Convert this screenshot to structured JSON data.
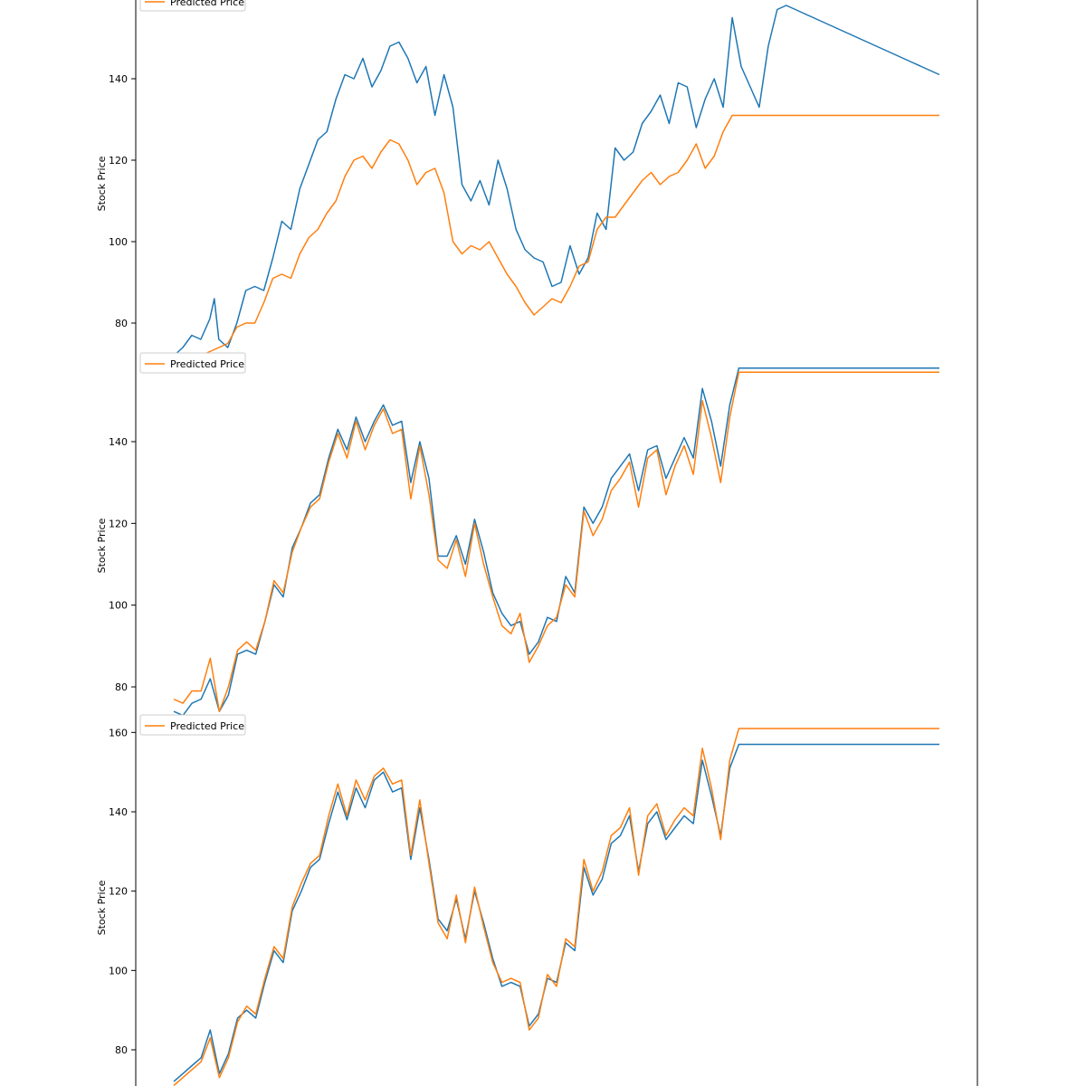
{
  "colors": {
    "actual": "#1f77b4",
    "predicted": "#ff7f0e",
    "axis": "#000000",
    "background": "#ffffff",
    "legend_border": "#cccccc"
  },
  "chart_data": [
    {
      "type": "line",
      "ylabel": "Stock Price",
      "ylim": [
        73,
        160
      ],
      "yticks": [
        {
          "value": 80,
          "label": "80"
        },
        {
          "value": 100,
          "label": "100"
        },
        {
          "value": 120,
          "label": "120"
        },
        {
          "value": 140,
          "label": "140"
        }
      ],
      "legend": {
        "placement": "top-left",
        "entries": [
          "Predicted Price"
        ]
      },
      "series": [
        {
          "role": "actual",
          "x": [
            0,
            10,
            20,
            30,
            40,
            45,
            50,
            60,
            70,
            80,
            90,
            100,
            110,
            120,
            130,
            140,
            150,
            160,
            170,
            180,
            190,
            200,
            210,
            220,
            230,
            240,
            250,
            260,
            270,
            280,
            290,
            300,
            310,
            320,
            330,
            340,
            350,
            360,
            370,
            380,
            390,
            400,
            410,
            420,
            430,
            440,
            450,
            460,
            470,
            480,
            490,
            500,
            510,
            520,
            530,
            540,
            550,
            560,
            570,
            580,
            590,
            600,
            610,
            620,
            630,
            640,
            650,
            660,
            670,
            680,
            690,
            700,
            710,
            720,
            730,
            740,
            750,
            760,
            770,
            780,
            790,
            800,
            810,
            820,
            830,
            840,
            850
          ],
          "values": [
            72,
            74,
            77,
            76,
            81,
            86,
            76,
            74,
            80,
            88,
            89,
            88,
            96,
            105,
            103,
            113,
            119,
            125,
            127,
            135,
            141,
            140,
            145,
            138,
            142,
            148,
            149,
            145,
            139,
            143,
            131,
            141,
            133,
            114,
            110,
            115,
            109,
            120,
            113,
            103,
            98,
            96,
            95,
            89,
            90,
            99,
            92,
            96,
            107,
            103,
            123,
            120,
            122,
            129,
            132,
            136,
            129,
            139,
            138,
            128,
            135,
            140,
            133,
            155,
            143,
            138,
            133,
            148,
            157,
            158,
            157,
            156,
            155,
            154,
            153,
            152,
            151,
            150,
            149,
            148,
            147,
            146,
            145,
            144,
            143,
            142,
            141
          ]
        },
        {
          "role": "predicted",
          "name": "Predicted Price",
          "x": [
            0,
            10,
            20,
            30,
            40,
            50,
            60,
            70,
            80,
            90,
            100,
            110,
            120,
            130,
            140,
            150,
            160,
            170,
            180,
            190,
            200,
            210,
            220,
            230,
            240,
            250,
            260,
            270,
            280,
            290,
            300,
            310,
            320,
            330,
            340,
            350,
            360,
            370,
            380,
            390,
            400,
            410,
            420,
            430,
            440,
            450,
            460,
            470,
            480,
            490,
            500,
            510,
            520,
            530,
            540,
            550,
            560,
            570,
            580,
            590,
            600,
            610,
            620,
            630,
            640,
            650,
            660,
            670,
            680,
            690,
            700,
            710,
            720,
            730,
            740,
            750,
            760,
            770,
            780,
            790,
            800,
            810,
            820,
            830,
            840,
            850
          ],
          "values": [
            70,
            71,
            72,
            72,
            73,
            74,
            75,
            79,
            80,
            80,
            85,
            91,
            92,
            91,
            97,
            101,
            103,
            107,
            110,
            116,
            120,
            121,
            118,
            122,
            125,
            124,
            120,
            114,
            117,
            118,
            112,
            100,
            97,
            99,
            98,
            100,
            96,
            92,
            89,
            85,
            82,
            84,
            86,
            85,
            89,
            94,
            95,
            103,
            106,
            106,
            109,
            112,
            115,
            117,
            114,
            116,
            117,
            120,
            124,
            118,
            121,
            127,
            131,
            131,
            131,
            131,
            131,
            131,
            131,
            131,
            131,
            131,
            131,
            131,
            131,
            131,
            131,
            131,
            131,
            131,
            131,
            131,
            131,
            131,
            131,
            131
          ]
        }
      ]
    },
    {
      "type": "line",
      "ylabel": "Stock Price",
      "ylim": [
        73,
        160
      ],
      "yticks": [
        {
          "value": 80,
          "label": "80"
        },
        {
          "value": 100,
          "label": "100"
        },
        {
          "value": 120,
          "label": "120"
        },
        {
          "value": 140,
          "label": "140"
        }
      ],
      "legend": {
        "placement": "top-left",
        "entries": [
          "Predicted Price"
        ]
      },
      "series": [
        {
          "role": "actual",
          "x": [
            0,
            10,
            20,
            30,
            40,
            50,
            60,
            70,
            80,
            90,
            100,
            110,
            120,
            130,
            140,
            150,
            160,
            170,
            180,
            190,
            200,
            210,
            220,
            230,
            240,
            250,
            260,
            270,
            280,
            290,
            300,
            310,
            320,
            330,
            340,
            350,
            360,
            370,
            380,
            390,
            400,
            410,
            420,
            430,
            440,
            450,
            460,
            470,
            480,
            490,
            500,
            510,
            520,
            530,
            540,
            550,
            560,
            570,
            580,
            590,
            600,
            610,
            620,
            630,
            640,
            650,
            660,
            670,
            680,
            690,
            700,
            710,
            720,
            730,
            740,
            750,
            760,
            770,
            780,
            790,
            800,
            810,
            820,
            830,
            840
          ],
          "values": [
            74,
            73,
            76,
            77,
            82,
            74,
            78,
            88,
            89,
            88,
            96,
            105,
            102,
            114,
            119,
            125,
            127,
            136,
            143,
            138,
            146,
            140,
            145,
            149,
            144,
            145,
            130,
            140,
            131,
            112,
            112,
            117,
            110,
            121,
            113,
            103,
            98,
            95,
            96,
            88,
            91,
            97,
            96,
            107,
            103,
            124,
            120,
            124,
            131,
            134,
            137,
            128,
            138,
            139,
            131,
            136,
            141,
            136,
            153,
            145,
            134,
            149,
            158,
            158,
            158,
            158,
            158,
            158,
            158,
            158,
            158,
            158,
            158,
            158,
            158,
            158,
            158,
            158,
            158,
            158,
            158,
            158,
            158,
            158,
            158
          ]
        },
        {
          "role": "predicted",
          "name": "Predicted Price",
          "x": [
            0,
            10,
            20,
            30,
            40,
            50,
            60,
            70,
            80,
            90,
            100,
            110,
            120,
            130,
            140,
            150,
            160,
            170,
            180,
            190,
            200,
            210,
            220,
            230,
            240,
            250,
            260,
            270,
            280,
            290,
            300,
            310,
            320,
            330,
            340,
            350,
            360,
            370,
            380,
            390,
            400,
            410,
            420,
            430,
            440,
            450,
            460,
            470,
            480,
            490,
            500,
            510,
            520,
            530,
            540,
            550,
            560,
            570,
            580,
            590,
            600,
            610,
            620,
            630,
            640,
            650,
            660,
            670,
            680,
            690,
            700,
            710,
            720,
            730,
            740,
            750,
            760,
            770,
            780,
            790,
            800,
            810,
            820,
            830,
            840
          ],
          "values": [
            77,
            76,
            79,
            79,
            87,
            74,
            80,
            89,
            91,
            89,
            96,
            106,
            103,
            113,
            119,
            124,
            126,
            135,
            142,
            136,
            145,
            138,
            144,
            148,
            142,
            143,
            126,
            139,
            127,
            111,
            109,
            116,
            107,
            120,
            110,
            102,
            95,
            93,
            98,
            86,
            90,
            95,
            97,
            105,
            102,
            123,
            117,
            121,
            128,
            131,
            135,
            124,
            136,
            138,
            127,
            134,
            139,
            132,
            150,
            141,
            130,
            146,
            157,
            157,
            157,
            157,
            157,
            157,
            157,
            157,
            157,
            157,
            157,
            157,
            157,
            157,
            157,
            157,
            157,
            157,
            157,
            157,
            157,
            157,
            157
          ]
        }
      ]
    },
    {
      "type": "line",
      "ylabel": "Stock Price",
      "ylim": [
        73,
        161
      ],
      "yticks": [
        {
          "value": 80,
          "label": "80"
        },
        {
          "value": 100,
          "label": "100"
        },
        {
          "value": 120,
          "label": "120"
        },
        {
          "value": 140,
          "label": "140"
        },
        {
          "value": 160,
          "label": "160"
        }
      ],
      "legend": {
        "placement": "top-left",
        "entries": [
          "Predicted Price"
        ]
      },
      "series": [
        {
          "role": "actual",
          "x": [
            0,
            10,
            20,
            30,
            40,
            50,
            60,
            70,
            80,
            90,
            100,
            110,
            120,
            130,
            140,
            150,
            160,
            170,
            180,
            190,
            200,
            210,
            220,
            230,
            240,
            250,
            260,
            270,
            280,
            290,
            300,
            310,
            320,
            330,
            340,
            350,
            360,
            370,
            380,
            390,
            400,
            410,
            420,
            430,
            440,
            450,
            460,
            470,
            480,
            490,
            500,
            510,
            520,
            530,
            540,
            550,
            560,
            570,
            580,
            590,
            600,
            610,
            620,
            630,
            640,
            650,
            660,
            670,
            680,
            690,
            700,
            710,
            720,
            730,
            740,
            750,
            760,
            770,
            780,
            790,
            800,
            810,
            820,
            830,
            840
          ],
          "values": [
            72,
            74,
            76,
            78,
            85,
            74,
            79,
            88,
            90,
            88,
            97,
            105,
            102,
            115,
            120,
            126,
            128,
            137,
            145,
            138,
            146,
            141,
            148,
            150,
            145,
            146,
            128,
            141,
            128,
            113,
            110,
            118,
            108,
            120,
            112,
            103,
            96,
            97,
            96,
            86,
            89,
            98,
            97,
            107,
            105,
            126,
            119,
            123,
            132,
            134,
            139,
            125,
            137,
            140,
            133,
            136,
            139,
            137,
            153,
            144,
            134,
            151,
            157,
            157,
            157,
            157,
            157,
            157,
            157,
            157,
            157,
            157,
            157,
            157,
            157,
            157,
            157,
            157,
            157,
            157,
            157,
            157,
            157,
            157,
            157
          ]
        },
        {
          "role": "predicted",
          "name": "Predicted Price",
          "x": [
            0,
            10,
            20,
            30,
            40,
            50,
            60,
            70,
            80,
            90,
            100,
            110,
            120,
            130,
            140,
            150,
            160,
            170,
            180,
            190,
            200,
            210,
            220,
            230,
            240,
            250,
            260,
            270,
            280,
            290,
            300,
            310,
            320,
            330,
            340,
            350,
            360,
            370,
            380,
            390,
            400,
            410,
            420,
            430,
            440,
            450,
            460,
            470,
            480,
            490,
            500,
            510,
            520,
            530,
            540,
            550,
            560,
            570,
            580,
            590,
            600,
            610,
            620,
            630,
            640,
            650,
            660,
            670,
            680,
            690,
            700,
            710,
            720,
            730,
            740,
            750,
            760,
            770,
            780,
            790,
            800,
            810,
            820,
            830,
            840
          ],
          "values": [
            71,
            73,
            75,
            77,
            83,
            73,
            78,
            87,
            91,
            89,
            98,
            106,
            103,
            116,
            122,
            127,
            129,
            139,
            147,
            139,
            148,
            143,
            149,
            151,
            147,
            148,
            129,
            143,
            127,
            112,
            108,
            119,
            107,
            121,
            111,
            102,
            97,
            98,
            97,
            85,
            88,
            99,
            96,
            108,
            106,
            128,
            120,
            125,
            134,
            136,
            141,
            124,
            139,
            142,
            134,
            138,
            141,
            139,
            156,
            146,
            133,
            153,
            161,
            161,
            161,
            161,
            161,
            161,
            161,
            161,
            161,
            161,
            161,
            161,
            161,
            161,
            161,
            161,
            161,
            161,
            161,
            161,
            161,
            161,
            161
          ]
        }
      ]
    }
  ]
}
